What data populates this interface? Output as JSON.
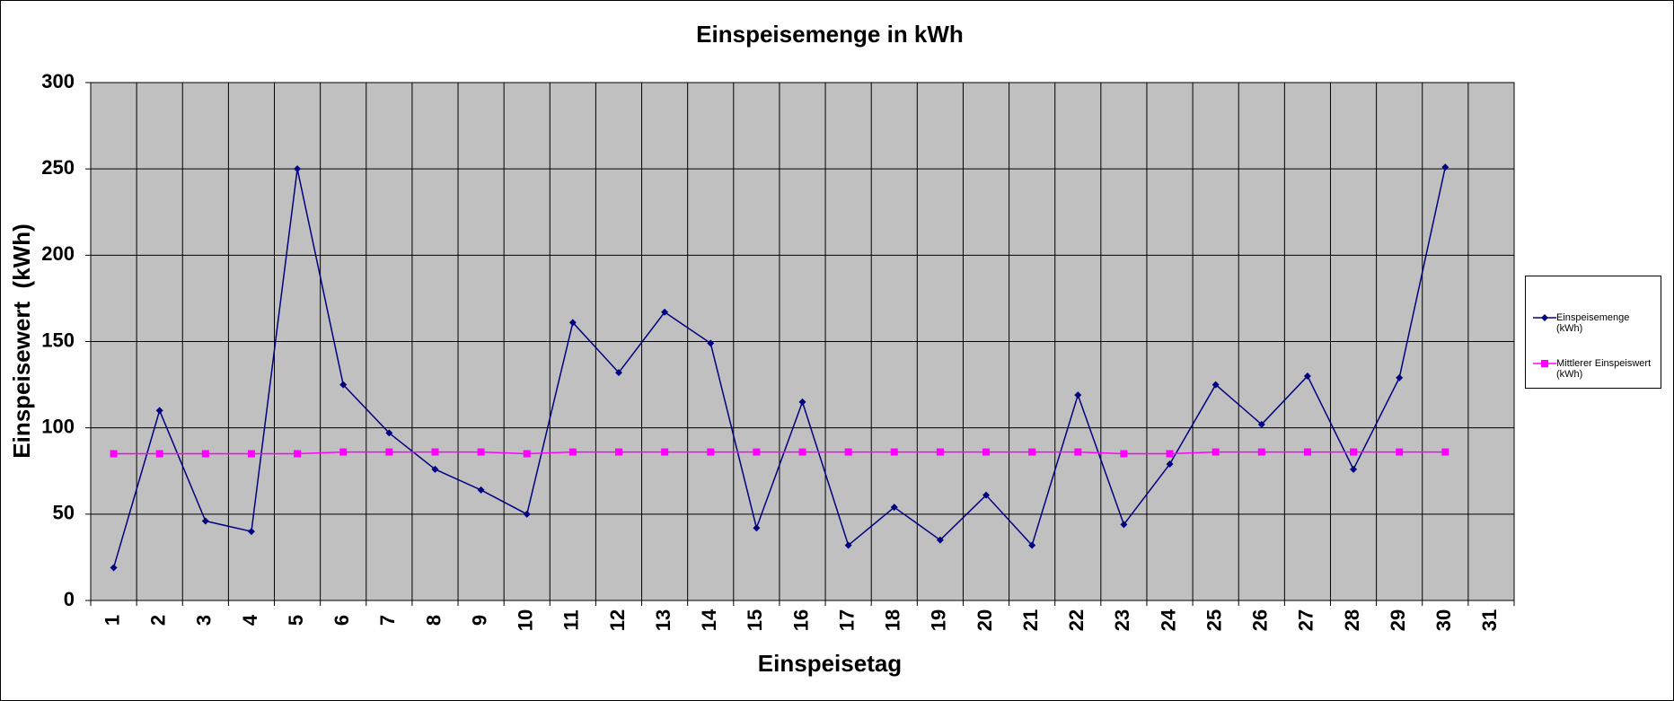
{
  "chart_data": {
    "type": "line",
    "title": "Einspeisemenge in kWh",
    "x_label": "Einspeisetag",
    "y_label": "Einspeisewert  (kWh)",
    "categories": [
      "1",
      "2",
      "3",
      "4",
      "5",
      "6",
      "7",
      "8",
      "9",
      "10",
      "11",
      "12",
      "13",
      "14",
      "15",
      "16",
      "17",
      "18",
      "19",
      "20",
      "21",
      "22",
      "23",
      "24",
      "25",
      "26",
      "27",
      "28",
      "29",
      "30",
      "31"
    ],
    "series": [
      {
        "name": "Einspeisemenge (kWh)",
        "color": "#000080",
        "marker": "diamond",
        "values": [
          19,
          110,
          46,
          40,
          250,
          125,
          97,
          76,
          64,
          50,
          161,
          132,
          167,
          149,
          42,
          115,
          32,
          54,
          35,
          61,
          32,
          119,
          44,
          79,
          125,
          102,
          130,
          76,
          129,
          251,
          null
        ]
      },
      {
        "name": "Mittlerer Einspeiswert (kWh)",
        "color": "#ff00ff",
        "marker": "square",
        "values": [
          85,
          85,
          85,
          85,
          85,
          86,
          86,
          86,
          86,
          85,
          86,
          86,
          86,
          86,
          86,
          86,
          86,
          86,
          86,
          86,
          86,
          86,
          85,
          85,
          86,
          86,
          86,
          86,
          86,
          86,
          null
        ]
      }
    ],
    "ylim": [
      0,
      300
    ],
    "yticks": [
      0,
      50,
      100,
      150,
      200,
      250,
      300
    ],
    "grid": true,
    "legend": "right",
    "plot_background": "#c0c0c0"
  }
}
